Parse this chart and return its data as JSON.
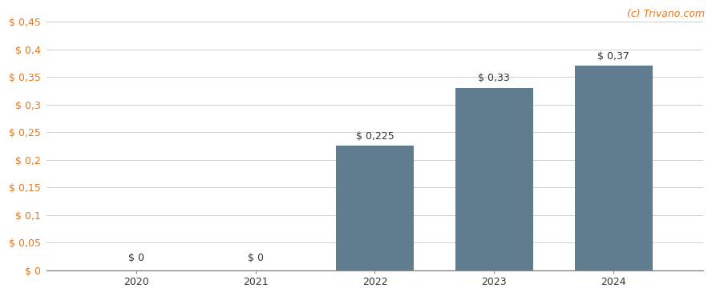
{
  "categories": [
    "2020",
    "2021",
    "2022",
    "2023",
    "2024"
  ],
  "values": [
    0.0,
    0.0,
    0.225,
    0.33,
    0.37
  ],
  "labels": [
    "$ 0",
    "$ 0",
    "$ 0,225",
    "$ 0,33",
    "$ 0,37"
  ],
  "bar_color": "#5f7d8e",
  "background_color": "#ffffff",
  "grid_color": "#d0d0d0",
  "ylim": [
    0,
    0.45
  ],
  "yticks": [
    0,
    0.05,
    0.1,
    0.15,
    0.2,
    0.25,
    0.3,
    0.35,
    0.4,
    0.45
  ],
  "ytick_labels": [
    "$ 0",
    "$ 0,05",
    "$ 0,1",
    "$ 0,15",
    "$ 0,2",
    "$ 0,25",
    "$ 0,3",
    "$ 0,35",
    "$ 0,4",
    "$ 0,45"
  ],
  "watermark": "(c) Trivano.com",
  "watermark_color": "#e07820",
  "label_fontsize": 9,
  "tick_fontsize": 9,
  "bar_width": 0.65,
  "axis_label_color": "#e07820",
  "label_color": "#333333"
}
